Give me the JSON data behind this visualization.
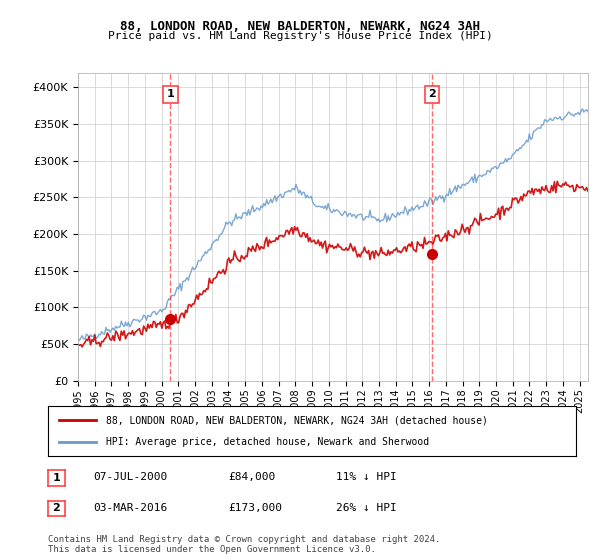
{
  "title1": "88, LONDON ROAD, NEW BALDERTON, NEWARK, NG24 3AH",
  "title2": "Price paid vs. HM Land Registry's House Price Index (HPI)",
  "ylim": [
    0,
    420000
  ],
  "xlim_start": 1995.0,
  "xlim_end": 2025.5,
  "sale1_x": 2000.52,
  "sale1_y": 84000,
  "sale2_x": 2016.17,
  "sale2_y": 173000,
  "legend_line1_label": "88, LONDON ROAD, NEW BALDERTON, NEWARK, NG24 3AH (detached house)",
  "legend_line2_label": "HPI: Average price, detached house, Newark and Sherwood",
  "date1": "07-JUL-2000",
  "price1": "£84,000",
  "hpi1": "11% ↓ HPI",
  "date2": "03-MAR-2016",
  "price2": "£173,000",
  "hpi2": "26% ↓ HPI",
  "footer": "Contains HM Land Registry data © Crown copyright and database right 2024.\nThis data is licensed under the Open Government Licence v3.0.",
  "red_color": "#cc0000",
  "blue_color": "#6699cc",
  "vline_color": "#ff4444",
  "grid_color": "#cccccc",
  "bg_color": "#ffffff"
}
